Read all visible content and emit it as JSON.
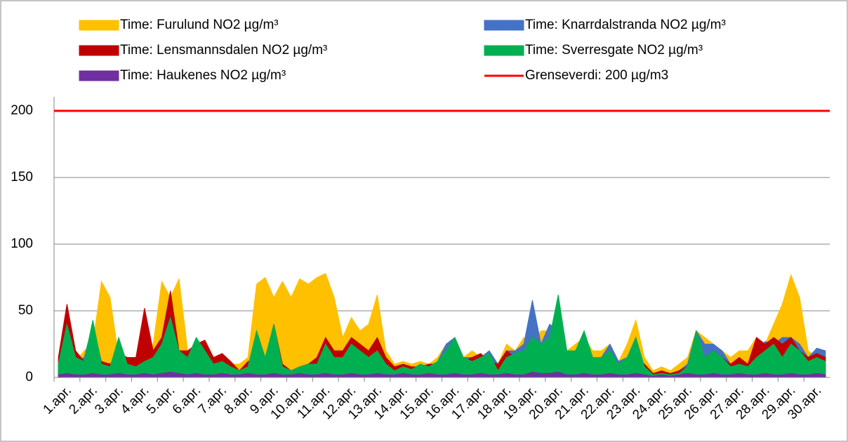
{
  "chart_data": {
    "type": "area",
    "categories": [
      "1.apr.",
      null,
      null,
      "2.apr.",
      null,
      null,
      "3.apr.",
      null,
      null,
      "4.apr.",
      null,
      null,
      "5.apr.",
      null,
      null,
      "6.apr.",
      null,
      null,
      "7.apr.",
      null,
      null,
      "8.apr.",
      null,
      null,
      "9.apr.",
      null,
      null,
      "10.apr.",
      null,
      null,
      "11.apr.",
      null,
      null,
      "12.apr.",
      null,
      null,
      "13.apr.",
      null,
      null,
      "14.apr.",
      null,
      null,
      "15.apr.",
      null,
      null,
      "16.apr.",
      null,
      null,
      "17.apr.",
      null,
      null,
      "18.apr.",
      null,
      null,
      "19.apr.",
      null,
      null,
      "20.apr.",
      null,
      null,
      "21.apr.",
      null,
      null,
      "22.apr.",
      null,
      null,
      "23.apr.",
      null,
      null,
      "24.apr.",
      null,
      null,
      "25.apr.",
      null,
      null,
      "26.apr.",
      null,
      null,
      "27.apr.",
      null,
      null,
      "28.apr.",
      null,
      null,
      "29.apr.",
      null,
      null,
      "30.apr.",
      null,
      null
    ],
    "series": [
      {
        "name": "Time: Furulund NO2  µg/m³",
        "color": "#ffc000",
        "values": [
          10,
          15,
          12,
          20,
          25,
          72,
          60,
          15,
          12,
          12,
          18,
          25,
          72,
          60,
          74,
          20,
          15,
          25,
          15,
          12,
          10,
          10,
          15,
          70,
          75,
          60,
          72,
          60,
          74,
          70,
          75,
          78,
          60,
          30,
          45,
          35,
          40,
          62,
          20,
          10,
          12,
          10,
          12,
          10,
          15,
          25,
          30,
          15,
          20,
          15,
          20,
          10,
          25,
          20,
          30,
          25,
          35,
          35,
          45,
          20,
          25,
          30,
          20,
          20,
          25,
          12,
          25,
          43,
          15,
          5,
          8,
          5,
          10,
          15,
          35,
          30,
          25,
          20,
          15,
          20,
          20,
          30,
          25,
          40,
          55,
          77,
          60,
          20,
          15,
          15
        ]
      },
      {
        "name": "Time: Knarrdalstranda NO2 µg/m³",
        "color": "#4472c4",
        "values": [
          8,
          20,
          12,
          15,
          40,
          12,
          10,
          15,
          12,
          10,
          15,
          20,
          20,
          40,
          15,
          15,
          20,
          25,
          8,
          10,
          8,
          5,
          8,
          15,
          10,
          20,
          8,
          5,
          8,
          10,
          10,
          15,
          12,
          15,
          25,
          20,
          12,
          25,
          10,
          5,
          8,
          6,
          10,
          8,
          12,
          25,
          30,
          15,
          15,
          15,
          20,
          10,
          20,
          20,
          25,
          58,
          25,
          40,
          35,
          20,
          20,
          30,
          15,
          15,
          25,
          12,
          15,
          30,
          8,
          2,
          3,
          2,
          5,
          10,
          35,
          25,
          25,
          20,
          10,
          12,
          10,
          20,
          27,
          25,
          30,
          30,
          25,
          15,
          22,
          20
        ]
      },
      {
        "name": "Time: Lensmannsdalen NO2 µg/m³",
        "color": "#c00000",
        "values": [
          15,
          55,
          20,
          12,
          25,
          12,
          10,
          18,
          15,
          15,
          52,
          20,
          30,
          65,
          20,
          20,
          25,
          28,
          15,
          18,
          12,
          5,
          12,
          15,
          12,
          40,
          10,
          5,
          8,
          10,
          15,
          30,
          20,
          20,
          30,
          25,
          20,
          30,
          15,
          8,
          10,
          8,
          8,
          10,
          10,
          15,
          20,
          12,
          15,
          18,
          12,
          10,
          20,
          15,
          15,
          20,
          25,
          20,
          40,
          15,
          15,
          20,
          15,
          12,
          15,
          10,
          10,
          15,
          10,
          3,
          5,
          3,
          5,
          8,
          15,
          15,
          20,
          15,
          10,
          15,
          10,
          30,
          25,
          30,
          25,
          30,
          20,
          15,
          18,
          15
        ]
      },
      {
        "name": "Time: Sverresgate  NO2 µg/m³",
        "color": "#00b050",
        "values": [
          10,
          40,
          15,
          12,
          43,
          10,
          8,
          30,
          10,
          8,
          12,
          15,
          25,
          45,
          20,
          15,
          30,
          20,
          10,
          12,
          8,
          5,
          8,
          35,
          15,
          40,
          8,
          5,
          8,
          10,
          10,
          25,
          15,
          15,
          25,
          20,
          15,
          20,
          10,
          5,
          8,
          6,
          10,
          8,
          12,
          20,
          30,
          15,
          12,
          15,
          18,
          5,
          15,
          18,
          20,
          30,
          25,
          30,
          62,
          20,
          20,
          35,
          15,
          15,
          20,
          10,
          15,
          30,
          8,
          2,
          3,
          2,
          3,
          8,
          35,
          15,
          20,
          15,
          8,
          10,
          8,
          15,
          20,
          25,
          15,
          25,
          20,
          12,
          15,
          12
        ]
      },
      {
        "name": "Time: Haukenes NO2 µg/m³",
        "color": "#7030a0",
        "values": [
          2,
          3,
          2,
          2,
          3,
          2,
          2,
          3,
          2,
          2,
          3,
          2,
          3,
          4,
          3,
          2,
          3,
          2,
          2,
          3,
          2,
          2,
          3,
          2,
          2,
          3,
          2,
          2,
          3,
          2,
          2,
          3,
          2,
          2,
          3,
          2,
          2,
          3,
          2,
          2,
          3,
          2,
          2,
          3,
          2,
          2,
          3,
          2,
          2,
          3,
          2,
          2,
          3,
          2,
          2,
          4,
          3,
          3,
          4,
          2,
          2,
          3,
          2,
          2,
          3,
          2,
          2,
          3,
          2,
          1,
          2,
          1,
          2,
          3,
          2,
          2,
          3,
          2,
          2,
          3,
          2,
          2,
          3,
          2,
          2,
          3,
          2,
          2,
          3,
          2
        ]
      }
    ],
    "reference_line": {
      "name": "Grenseverdi: 200 µg/m3",
      "value": 200,
      "color": "#ff0000"
    },
    "ylim": [
      0,
      200
    ],
    "yticks": [
      0,
      50,
      100,
      150,
      200
    ],
    "grid": true
  }
}
